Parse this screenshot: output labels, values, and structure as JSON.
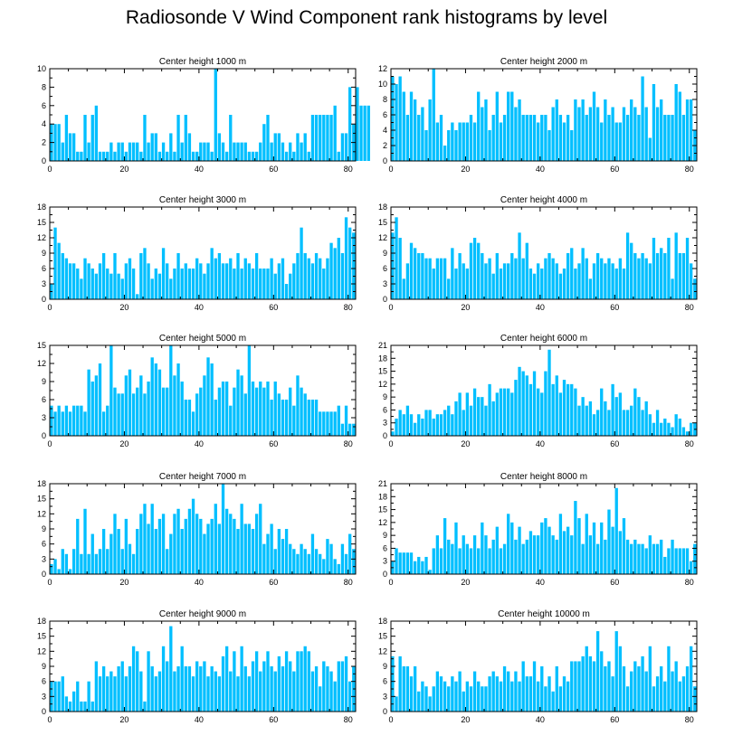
{
  "title": "Radiosonde V Wind Component rank histograms by level",
  "bar_color": "#00bfff",
  "chart_data": [
    {
      "type": "bar",
      "title": "Center height 1000 m",
      "xlim": [
        0,
        82
      ],
      "xticks": [
        0,
        20,
        40,
        60,
        80
      ],
      "ylim": [
        0,
        10
      ],
      "yticks": [
        0,
        2,
        4,
        6,
        8,
        10
      ],
      "values": [
        4,
        4,
        4,
        2,
        5,
        3,
        3,
        1,
        1,
        5,
        2,
        5,
        6,
        1,
        1,
        1,
        2,
        1,
        2,
        2,
        1,
        2,
        2,
        2,
        1,
        5,
        2,
        3,
        3,
        1,
        2,
        1,
        3,
        1,
        5,
        2,
        5,
        3,
        1,
        1,
        2,
        2,
        2,
        1,
        10,
        3,
        2,
        1,
        5,
        2,
        2,
        2,
        2,
        1,
        1,
        1,
        2,
        4,
        5,
        2,
        3,
        3,
        2,
        1,
        2,
        1,
        3,
        2,
        3,
        1,
        5,
        5,
        5,
        5,
        5,
        5,
        6,
        1,
        3,
        3,
        8,
        4,
        8,
        6,
        6,
        6
      ]
    },
    {
      "type": "bar",
      "title": "Center height 2000 m",
      "xlim": [
        0,
        82
      ],
      "xticks": [
        0,
        20,
        40,
        60,
        80
      ],
      "ylim": [
        0,
        12
      ],
      "yticks": [
        0,
        2,
        4,
        6,
        8,
        10,
        12
      ],
      "values": [
        11,
        10,
        11,
        9,
        6,
        9,
        8,
        6,
        7,
        4,
        8,
        12,
        5,
        6,
        2,
        4,
        5,
        4,
        5,
        5,
        5,
        6,
        5,
        9,
        7,
        8,
        4,
        6,
        9,
        5,
        6,
        9,
        9,
        7,
        8,
        6,
        6,
        6,
        6,
        5,
        6,
        6,
        4,
        7,
        8,
        6,
        5,
        6,
        4,
        8,
        7,
        8,
        6,
        7,
        9,
        7,
        5,
        8,
        6,
        7,
        5,
        5,
        7,
        6,
        8,
        7,
        6,
        11,
        7,
        3,
        10,
        7,
        8,
        6,
        6,
        6,
        10,
        9,
        6,
        8,
        8,
        4
      ]
    },
    {
      "type": "bar",
      "title": "Center height 3000 m",
      "xlim": [
        0,
        82
      ],
      "xticks": [
        0,
        20,
        40,
        60,
        80
      ],
      "ylim": [
        0,
        18
      ],
      "yticks": [
        0,
        3,
        6,
        9,
        12,
        15,
        18
      ],
      "values": [
        3,
        14,
        11,
        9,
        8,
        7,
        7,
        6,
        4,
        8,
        7,
        6,
        5,
        7,
        9,
        6,
        5,
        9,
        5,
        4,
        7,
        8,
        6,
        1,
        9,
        10,
        7,
        4,
        6,
        5,
        10,
        7,
        4,
        6,
        9,
        6,
        7,
        6,
        6,
        8,
        7,
        5,
        7,
        10,
        8,
        9,
        7,
        7,
        8,
        6,
        9,
        6,
        8,
        7,
        6,
        9,
        6,
        6,
        6,
        8,
        5,
        7,
        8,
        3,
        5,
        7,
        9,
        14,
        9,
        8,
        7,
        9,
        8,
        6,
        8,
        11,
        10,
        12,
        9,
        16,
        14,
        13
      ]
    },
    {
      "type": "bar",
      "title": "Center height 4000 m",
      "xlim": [
        0,
        82
      ],
      "xticks": [
        0,
        20,
        40,
        60,
        80
      ],
      "ylim": [
        0,
        18
      ],
      "yticks": [
        0,
        3,
        6,
        9,
        12,
        15,
        18
      ],
      "values": [
        13,
        16,
        12,
        4,
        7,
        11,
        10,
        9,
        9,
        8,
        8,
        6,
        8,
        8,
        8,
        4,
        10,
        6,
        9,
        7,
        6,
        11,
        12,
        11,
        9,
        7,
        8,
        5,
        9,
        6,
        7,
        7,
        9,
        8,
        13,
        8,
        11,
        6,
        5,
        7,
        6,
        8,
        9,
        8,
        7,
        5,
        6,
        9,
        10,
        6,
        7,
        10,
        8,
        4,
        7,
        9,
        8,
        7,
        8,
        7,
        6,
        8,
        6,
        13,
        11,
        9,
        8,
        9,
        8,
        7,
        12,
        9,
        10,
        9,
        12,
        4,
        13,
        9,
        9,
        12,
        7,
        4
      ]
    },
    {
      "type": "bar",
      "title": "Center height 5000 m",
      "xlim": [
        0,
        82
      ],
      "xticks": [
        0,
        20,
        40,
        60,
        80
      ],
      "ylim": [
        0,
        15
      ],
      "yticks": [
        0,
        3,
        6,
        9,
        12,
        15
      ],
      "values": [
        5,
        4,
        5,
        4,
        5,
        4,
        5,
        5,
        5,
        4,
        11,
        9,
        10,
        12,
        4,
        5,
        15,
        8,
        7,
        7,
        10,
        11,
        7,
        8,
        10,
        7,
        9,
        13,
        12,
        11,
        8,
        8,
        15,
        10,
        12,
        9,
        6,
        6,
        4,
        7,
        8,
        10,
        13,
        12,
        6,
        8,
        9,
        9,
        5,
        8,
        11,
        10,
        7,
        15,
        9,
        8,
        9,
        8,
        9,
        6,
        9,
        7,
        6,
        6,
        8,
        5,
        10,
        8,
        7,
        6,
        6,
        6,
        4,
        4,
        4,
        4,
        4,
        5,
        2,
        5,
        2,
        2
      ]
    },
    {
      "type": "bar",
      "title": "Center height 6000 m",
      "xlim": [
        0,
        82
      ],
      "xticks": [
        0,
        20,
        40,
        60,
        80
      ],
      "ylim": [
        0,
        21
      ],
      "yticks": [
        0,
        3,
        6,
        9,
        12,
        15,
        18,
        21
      ],
      "values": [
        1,
        4,
        6,
        5,
        7,
        5,
        3,
        5,
        4,
        6,
        6,
        4,
        5,
        5,
        6,
        7,
        5,
        8,
        10,
        6,
        10,
        7,
        11,
        9,
        9,
        7,
        12,
        8,
        10,
        11,
        11,
        11,
        10,
        13,
        16,
        15,
        14,
        12,
        15,
        11,
        10,
        15,
        20,
        12,
        14,
        10,
        13,
        12,
        12,
        11,
        7,
        9,
        7,
        8,
        5,
        6,
        11,
        8,
        6,
        12,
        9,
        10,
        6,
        6,
        7,
        11,
        9,
        6,
        8,
        5,
        3,
        6,
        3,
        4,
        3,
        2,
        5,
        4,
        2,
        1,
        3,
        3
      ]
    },
    {
      "type": "bar",
      "title": "Center height 7000 m",
      "xlim": [
        0,
        82
      ],
      "xticks": [
        0,
        20,
        40,
        60,
        80
      ],
      "ylim": [
        0,
        18
      ],
      "yticks": [
        0,
        3,
        6,
        9,
        12,
        15,
        18
      ],
      "values": [
        2,
        3,
        1,
        5,
        4,
        1,
        5,
        11,
        4,
        13,
        4,
        8,
        4,
        5,
        9,
        5,
        8,
        12,
        9,
        5,
        11,
        6,
        4,
        9,
        12,
        14,
        10,
        14,
        9,
        11,
        12,
        5,
        8,
        12,
        13,
        9,
        11,
        13,
        15,
        12,
        11,
        8,
        10,
        11,
        14,
        10,
        18,
        13,
        12,
        11,
        9,
        14,
        10,
        10,
        9,
        12,
        14,
        6,
        8,
        10,
        5,
        9,
        7,
        9,
        6,
        5,
        4,
        6,
        5,
        4,
        8,
        5,
        4,
        3,
        7,
        6,
        3,
        2,
        6,
        4,
        8,
        5
      ]
    },
    {
      "type": "bar",
      "title": "Center height 8000 m",
      "xlim": [
        0,
        82
      ],
      "xticks": [
        0,
        20,
        40,
        60,
        80
      ],
      "ylim": [
        0,
        21
      ],
      "yticks": [
        0,
        3,
        6,
        9,
        12,
        15,
        18,
        21
      ],
      "values": [
        3,
        6,
        5,
        5,
        5,
        5,
        3,
        4,
        3,
        4,
        1,
        6,
        9,
        6,
        13,
        8,
        7,
        12,
        6,
        9,
        7,
        6,
        9,
        6,
        12,
        9,
        6,
        8,
        11,
        6,
        7,
        14,
        12,
        8,
        11,
        7,
        8,
        10,
        9,
        9,
        12,
        13,
        11,
        9,
        8,
        14,
        10,
        11,
        9,
        17,
        13,
        7,
        14,
        9,
        12,
        7,
        12,
        8,
        15,
        11,
        20,
        10,
        13,
        8,
        7,
        8,
        7,
        7,
        6,
        9,
        7,
        7,
        8,
        4,
        6,
        8,
        6,
        6,
        6,
        6,
        3,
        7
      ]
    },
    {
      "type": "bar",
      "title": "Center height 9000 m",
      "xlim": [
        0,
        82
      ],
      "xticks": [
        0,
        20,
        40,
        60,
        80
      ],
      "ylim": [
        0,
        18
      ],
      "yticks": [
        0,
        3,
        6,
        9,
        12,
        15,
        18
      ],
      "values": [
        6,
        6,
        6,
        7,
        3,
        2,
        4,
        6,
        2,
        2,
        6,
        2,
        10,
        7,
        9,
        7,
        8,
        7,
        9,
        10,
        7,
        9,
        13,
        12,
        8,
        2,
        12,
        9,
        7,
        8,
        13,
        10,
        17,
        8,
        9,
        13,
        9,
        9,
        7,
        10,
        9,
        10,
        7,
        9,
        8,
        7,
        11,
        13,
        8,
        12,
        7,
        13,
        9,
        7,
        10,
        12,
        8,
        10,
        12,
        9,
        8,
        11,
        9,
        12,
        10,
        8,
        12,
        12,
        13,
        12,
        8,
        9,
        5,
        10,
        9,
        8,
        6,
        10,
        10,
        11,
        6,
        9
      ]
    },
    {
      "type": "bar",
      "title": "Center height 10000 m",
      "xlim": [
        0,
        82
      ],
      "xticks": [
        0,
        20,
        40,
        60,
        80
      ],
      "ylim": [
        0,
        18
      ],
      "yticks": [
        0,
        3,
        6,
        9,
        12,
        15,
        18
      ],
      "values": [
        11,
        3,
        11,
        9,
        9,
        7,
        9,
        4,
        6,
        5,
        3,
        5,
        8,
        7,
        6,
        5,
        7,
        6,
        8,
        4,
        6,
        5,
        8,
        6,
        5,
        5,
        7,
        8,
        7,
        6,
        9,
        8,
        6,
        8,
        6,
        10,
        7,
        7,
        10,
        6,
        9,
        5,
        7,
        4,
        9,
        5,
        7,
        6,
        10,
        10,
        10,
        11,
        13,
        11,
        10,
        16,
        12,
        9,
        10,
        7,
        16,
        13,
        9,
        5,
        8,
        10,
        9,
        11,
        8,
        13,
        5,
        7,
        9,
        6,
        13,
        8,
        10,
        6,
        7,
        9,
        13,
        5
      ]
    }
  ]
}
